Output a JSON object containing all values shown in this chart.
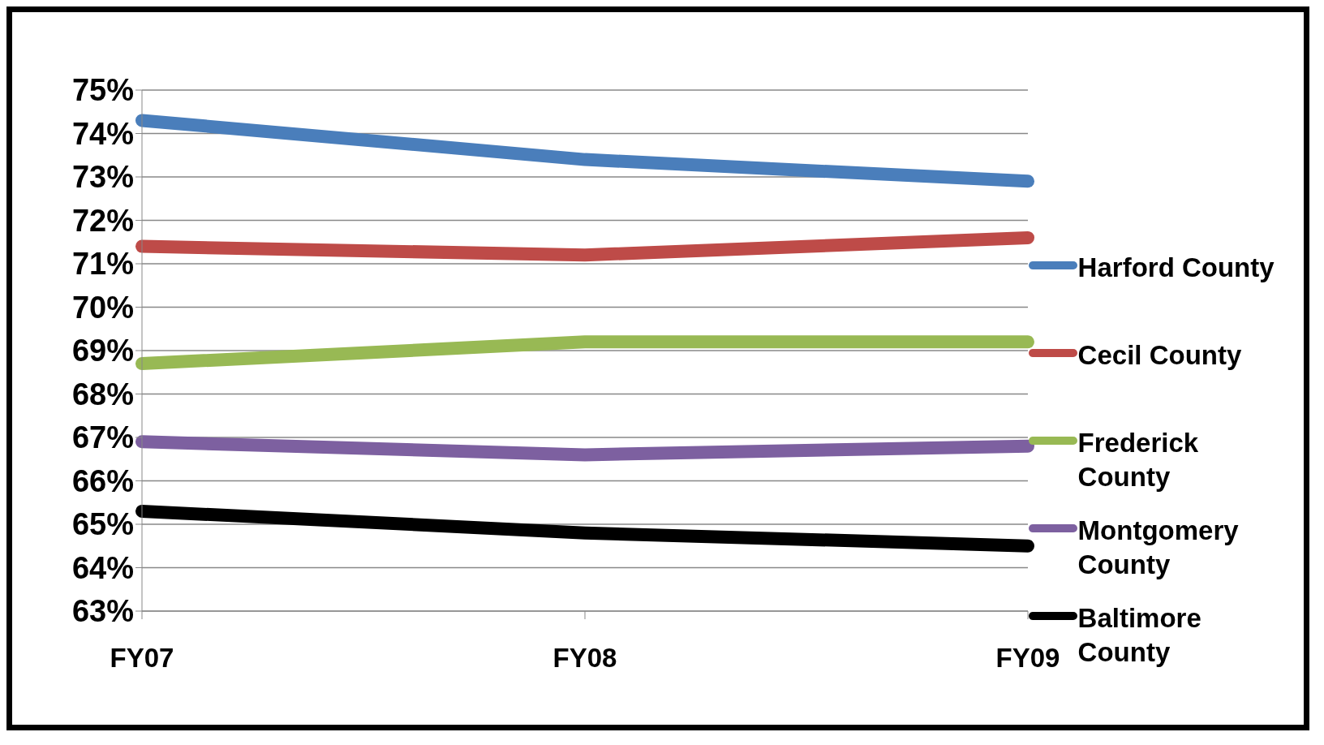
{
  "chart_data": {
    "type": "line",
    "categories": [
      "FY07",
      "FY08",
      "FY09"
    ],
    "series": [
      {
        "name": "Harford County",
        "color": "#4a7ebb",
        "values": [
          74.3,
          73.4,
          72.9
        ]
      },
      {
        "name": "Cecil County",
        "color": "#be4b48",
        "values": [
          71.4,
          71.2,
          71.6
        ]
      },
      {
        "name": "Frederick County",
        "color": "#98b954",
        "values": [
          68.7,
          69.2,
          69.2
        ]
      },
      {
        "name": "Montgomery County",
        "color": "#7d60a0",
        "values": [
          66.9,
          66.6,
          66.8
        ]
      },
      {
        "name": "Baltimore County",
        "color": "#000000",
        "values": [
          65.3,
          64.8,
          64.5
        ]
      }
    ],
    "ylim": [
      63,
      75
    ],
    "yticks": [
      {
        "value": 63,
        "label": "63%"
      },
      {
        "value": 64,
        "label": "64%"
      },
      {
        "value": 65,
        "label": "65%"
      },
      {
        "value": 66,
        "label": "66%"
      },
      {
        "value": 67,
        "label": "67%"
      },
      {
        "value": 68,
        "label": "68%"
      },
      {
        "value": 69,
        "label": "69%"
      },
      {
        "value": 70,
        "label": "70%"
      },
      {
        "value": 71,
        "label": "71%"
      },
      {
        "value": 72,
        "label": "72%"
      },
      {
        "value": 73,
        "label": "73%"
      },
      {
        "value": 74,
        "label": "74%"
      },
      {
        "value": 75,
        "label": "75%"
      }
    ],
    "grid": "y",
    "legend": "right",
    "marker": "none",
    "line_style": "solid"
  }
}
